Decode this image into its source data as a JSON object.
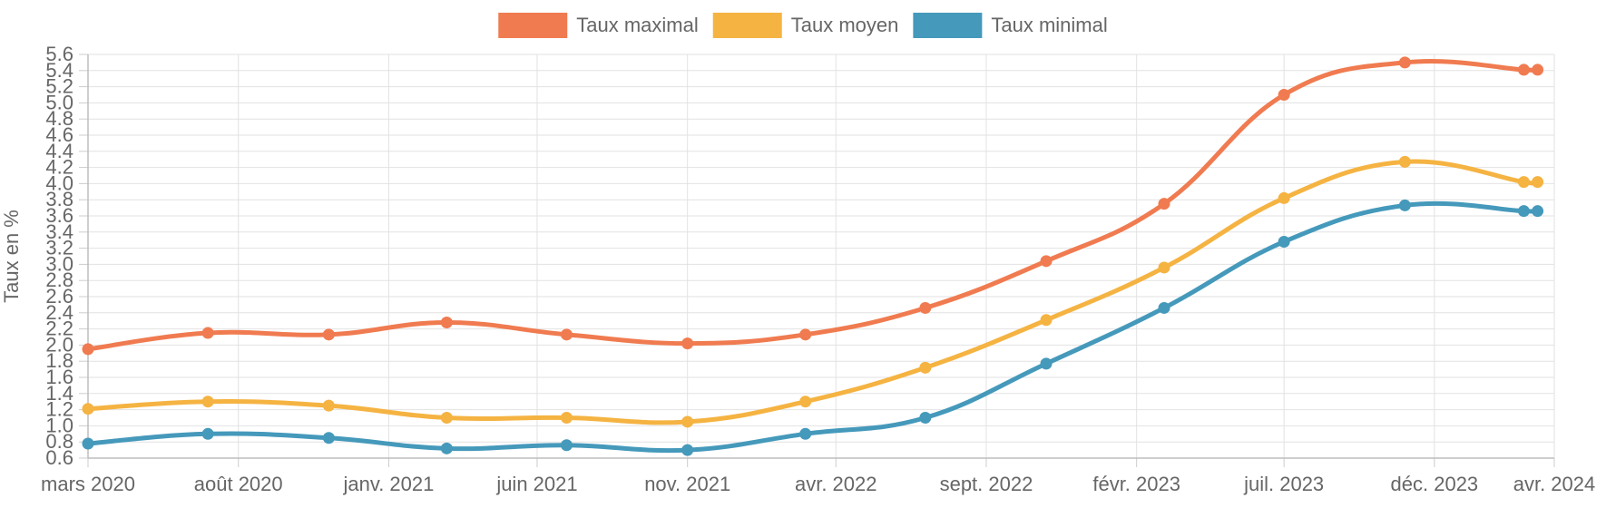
{
  "chart_data": {
    "type": "line",
    "title": "",
    "xlabel": "",
    "ylabel": "Taux en %",
    "x_ticks": [
      "mars 2020",
      "août 2020",
      "janv. 2021",
      "juin 2021",
      "nov. 2021",
      "avr. 2022",
      "sept. 2022",
      "févr. 2023",
      "juil. 2023",
      "déc. 2023",
      "avr. 2024"
    ],
    "x_tick_dates": [
      "2020-03-01",
      "2020-08-01",
      "2021-01-01",
      "2021-06-01",
      "2021-11-01",
      "2022-04-01",
      "2022-09-01",
      "2023-02-01",
      "2023-07-01",
      "2023-12-01",
      "2024-04-01"
    ],
    "xlim": [
      "2020-03-01",
      "2024-04-01"
    ],
    "ylim": [
      0.6,
      5.6
    ],
    "y_ticks": [
      "0.6",
      "0.8",
      "1.0",
      "1.2",
      "1.4",
      "1.6",
      "1.8",
      "2.0",
      "2.2",
      "2.4",
      "2.6",
      "2.8",
      "3.0",
      "3.2",
      "3.4",
      "3.6",
      "3.8",
      "4.0",
      "4.2",
      "4.4",
      "4.6",
      "4.8",
      "5.0",
      "5.2",
      "5.4",
      "5.6"
    ],
    "grid": true,
    "legend_position": "top-center",
    "x": [
      "2020-03-01",
      "2020-07-01",
      "2020-11-01",
      "2021-03-01",
      "2021-07-01",
      "2021-11-01",
      "2022-03-01",
      "2022-07-01",
      "2022-11-01",
      "2023-03-01",
      "2023-07-01",
      "2023-11-01",
      "2024-03-01",
      "2024-03-15"
    ],
    "series": [
      {
        "name": "Taux maximal",
        "color": "#f07b50",
        "values": [
          1.95,
          2.15,
          2.13,
          2.28,
          2.13,
          2.02,
          2.13,
          2.46,
          3.04,
          3.75,
          5.1,
          5.5,
          5.41,
          5.41
        ]
      },
      {
        "name": "Taux moyen",
        "color": "#f5b342",
        "values": [
          1.21,
          1.3,
          1.25,
          1.1,
          1.1,
          1.05,
          1.3,
          1.72,
          2.31,
          2.96,
          3.82,
          4.27,
          4.02,
          4.02
        ]
      },
      {
        "name": "Taux minimal",
        "color": "#4599bb",
        "values": [
          0.78,
          0.9,
          0.85,
          0.72,
          0.76,
          0.7,
          0.9,
          1.1,
          1.77,
          2.46,
          3.28,
          3.73,
          3.66,
          3.66
        ]
      }
    ]
  }
}
